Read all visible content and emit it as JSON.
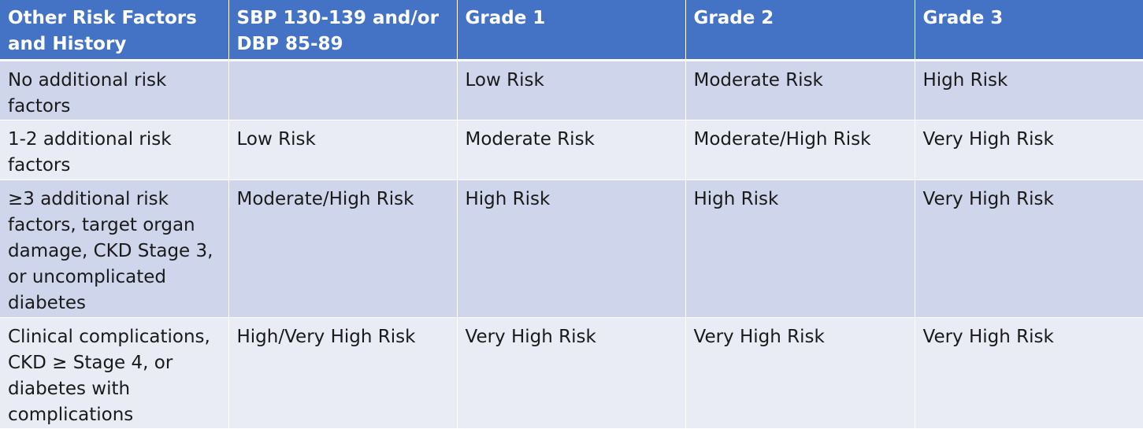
{
  "table": {
    "headers": [
      "Other Risk Factors and History",
      "SBP 130-139 and/or DBP 85-89",
      "Grade 1",
      "Grade 2",
      "Grade 3"
    ],
    "rows": [
      [
        "No additional risk factors",
        "",
        "Low Risk",
        "Moderate Risk",
        "High Risk"
      ],
      [
        "1-2 additional risk factors",
        "Low Risk",
        "Moderate Risk",
        "Moderate/High Risk",
        "Very High Risk"
      ],
      [
        "≥3 additional risk factors, target organ damage, CKD Stage 3, or uncomplicated diabetes",
        "Moderate/High Risk",
        "High Risk",
        "High Risk",
        "Very High Risk"
      ],
      [
        "Clinical complications, CKD ≥ Stage 4, or diabetes with complications",
        "High/Very High Risk",
        "Very High Risk",
        "Very High Risk",
        "Very High Risk"
      ]
    ]
  },
  "colors": {
    "header_bg": "#4472c4",
    "band_dark": "#cfd5ea",
    "band_light": "#e9ebf5"
  }
}
